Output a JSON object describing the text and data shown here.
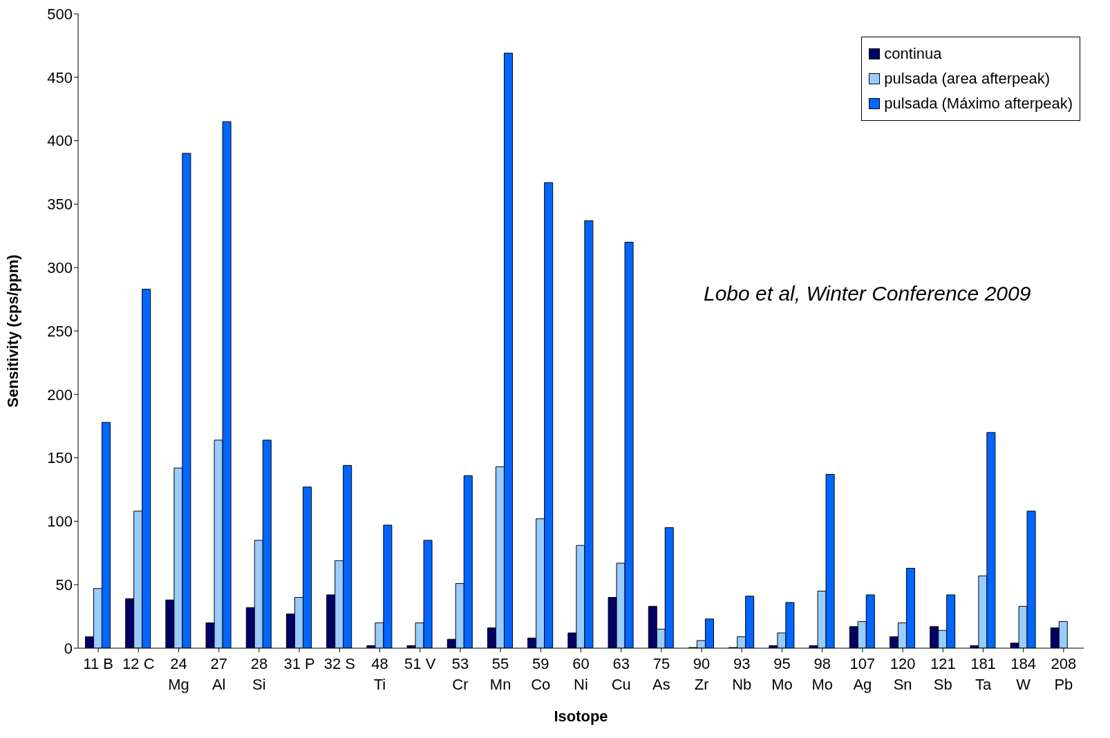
{
  "chart_data": {
    "type": "bar",
    "xlabel": "Isotope",
    "ylabel": "Sensitivity (cps/ppm)",
    "categories": [
      "11 B",
      "12 C",
      "24\nMg",
      "27\nAl",
      "28\nSi",
      "31 P",
      "32 S",
      "48\nTi",
      "51 V",
      "53\nCr",
      "55\nMn",
      "59\nCo",
      "60\nNi",
      "63\nCu",
      "75\nAs",
      "90\nZr",
      "93\nNb",
      "95\nMo",
      "98\nMo",
      "107\nAg",
      "120\nSn",
      "121\nSb",
      "181\nTa",
      "184\nW",
      "208\nPb"
    ],
    "series": [
      {
        "name": "continua",
        "color": "#000066",
        "values": [
          9,
          39,
          38,
          20,
          32,
          27,
          42,
          2,
          2,
          7,
          16,
          8,
          12,
          40,
          33,
          0.5,
          0.5,
          2,
          2,
          17,
          9,
          17,
          2,
          4,
          16
        ]
      },
      {
        "name": "pulsada (area afterpeak)",
        "color": "#99ccff",
        "values": [
          47,
          108,
          142,
          164,
          85,
          40,
          69,
          20,
          20,
          51,
          143,
          102,
          81,
          67,
          15,
          6,
          9,
          12,
          45,
          21,
          20,
          14,
          57,
          33,
          21
        ]
      },
      {
        "name": "pulsada (Máximo afterpeak)",
        "color": "#0066ff",
        "values": [
          178,
          283,
          390,
          415,
          164,
          127,
          144,
          97,
          85,
          136,
          469,
          367,
          337,
          320,
          95,
          23,
          41,
          36,
          137,
          42,
          63,
          42,
          170,
          108,
          null
        ]
      }
    ],
    "ylim": [
      0,
      500
    ],
    "yticks": [
      0,
      50,
      100,
      150,
      200,
      250,
      300,
      350,
      400,
      450,
      500
    ],
    "grid": false,
    "legend": "top right",
    "annotations": [
      "Lobo et al, Winter Conference 2009"
    ]
  }
}
